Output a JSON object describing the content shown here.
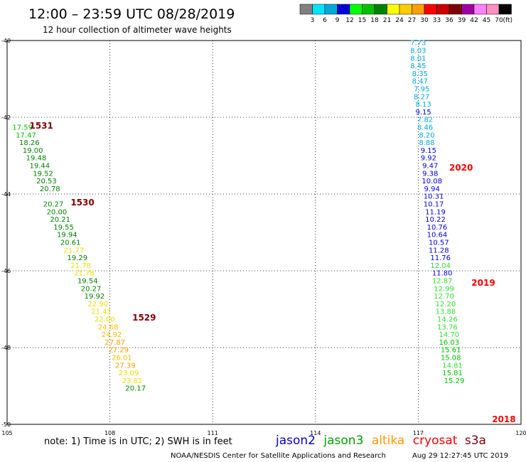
{
  "header": {
    "title": "12:00 – 23:59 UTC 08/28/2019",
    "subtitle": "12 hour collection of altimeter wave heights"
  },
  "legend_scale": {
    "colors": [
      "#808080",
      "#00e5ff",
      "#00a8d8",
      "#0000d8",
      "#00ff00",
      "#00c000",
      "#008000",
      "#ffff00",
      "#ffcc00",
      "#ffa000",
      "#ff0000",
      "#cc0000",
      "#800000",
      "#a000a0",
      "#ff80ff",
      "#ff90c0",
      "#000000"
    ],
    "labels": [
      "3",
      "6",
      "9",
      "12",
      "15",
      "18",
      "21",
      "24",
      "27",
      "30",
      "33",
      "36",
      "39",
      "42",
      "45",
      "70"
    ],
    "unit": "(ft)"
  },
  "footer": {
    "note": "note:  1) Time is in UTC;  2) SWH is in feet",
    "credit": "NOAA/NESDIS Center for Satellite Applications and Research",
    "timestamp": "Aug 29 12:27:45 UTC 2019",
    "satellites": [
      {
        "name": "jason2",
        "color": "#0000cc"
      },
      {
        "name": "jason3",
        "color": "#00a000"
      },
      {
        "name": "altika",
        "color": "#ff9900"
      },
      {
        "name": "cryosat",
        "color": "#ff0000"
      },
      {
        "name": "s3a",
        "color": "#800000"
      }
    ]
  },
  "chart_data": {
    "type": "scatter",
    "title": "12:00 – 23:59 UTC 08/28/2019",
    "xlim": [
      105,
      120
    ],
    "ylim": [
      -50,
      -40
    ],
    "x_ticks": [
      "105",
      "108",
      "111",
      "114",
      "117",
      "120"
    ],
    "y_ticks": [
      "-40",
      "-42",
      "-44",
      "-46",
      "-48",
      "-50"
    ],
    "grid": true,
    "series": [
      {
        "name": "s3a",
        "points": [
          {
            "x": 105.45,
            "y": -42.25,
            "v": "17.59"
          },
          {
            "x": 105.55,
            "y": -42.45,
            "v": "17.47"
          },
          {
            "x": 105.65,
            "y": -42.65,
            "v": "18.26"
          },
          {
            "x": 105.75,
            "y": -42.85,
            "v": "19.00"
          },
          {
            "x": 105.85,
            "y": -43.05,
            "v": "19.48"
          },
          {
            "x": 105.95,
            "y": -43.25,
            "v": "19.44"
          },
          {
            "x": 106.05,
            "y": -43.45,
            "v": "19.52"
          },
          {
            "x": 106.15,
            "y": -43.65,
            "v": "20.53"
          },
          {
            "x": 106.25,
            "y": -43.85,
            "v": "20.78"
          },
          {
            "x": 106.35,
            "y": -44.25,
            "v": "20.27"
          },
          {
            "x": 106.45,
            "y": -44.45,
            "v": "20.00"
          },
          {
            "x": 106.55,
            "y": -44.65,
            "v": "20.21"
          },
          {
            "x": 106.65,
            "y": -44.85,
            "v": "19.55"
          },
          {
            "x": 106.75,
            "y": -45.05,
            "v": "19.94"
          },
          {
            "x": 106.85,
            "y": -45.25,
            "v": "20.61"
          },
          {
            "x": 106.95,
            "y": -45.45,
            "v": "21.77"
          },
          {
            "x": 107.05,
            "y": -45.65,
            "v": "19.29"
          },
          {
            "x": 107.15,
            "y": -45.85,
            "v": "21.78"
          },
          {
            "x": 107.25,
            "y": -46.05,
            "v": "21.78"
          },
          {
            "x": 107.35,
            "y": -46.25,
            "v": "19.54"
          },
          {
            "x": 107.45,
            "y": -46.45,
            "v": "20.27"
          },
          {
            "x": 107.55,
            "y": -46.65,
            "v": "19.92"
          },
          {
            "x": 107.65,
            "y": -46.85,
            "v": "22.90"
          },
          {
            "x": 107.75,
            "y": -47.05,
            "v": "21.41"
          },
          {
            "x": 107.85,
            "y": -47.25,
            "v": "22.00"
          },
          {
            "x": 107.95,
            "y": -47.45,
            "v": "24.68"
          },
          {
            "x": 108.05,
            "y": -47.65,
            "v": "24.92"
          },
          {
            "x": 108.15,
            "y": -47.85,
            "v": "27.87"
          },
          {
            "x": 108.25,
            "y": -48.05,
            "v": "27.29"
          },
          {
            "x": 108.35,
            "y": -48.25,
            "v": "26.01"
          },
          {
            "x": 108.45,
            "y": -48.45,
            "v": "27.39"
          },
          {
            "x": 108.55,
            "y": -48.65,
            "v": "23.09"
          },
          {
            "x": 108.65,
            "y": -48.85,
            "v": "23.81"
          },
          {
            "x": 108.75,
            "y": -49.05,
            "v": "20.17"
          }
        ]
      },
      {
        "name": "cryosat",
        "points": [
          {
            "x": 117.0,
            "y": -40.05,
            "v": "7.73"
          },
          {
            "x": 117.0,
            "y": -40.25,
            "v": "8.03"
          },
          {
            "x": 117.0,
            "y": -40.45,
            "v": "8.01"
          },
          {
            "x": 117.0,
            "y": -40.65,
            "v": "8.45"
          },
          {
            "x": 117.05,
            "y": -40.85,
            "v": "8.35"
          },
          {
            "x": 117.05,
            "y": -41.05,
            "v": "8.47"
          },
          {
            "x": 117.1,
            "y": -41.25,
            "v": "7.95"
          },
          {
            "x": 117.1,
            "y": -41.45,
            "v": "8.27"
          },
          {
            "x": 117.15,
            "y": -41.65,
            "v": "8.13"
          },
          {
            "x": 117.15,
            "y": -41.85,
            "v": "9.15"
          },
          {
            "x": 117.2,
            "y": -42.05,
            "v": "7.82"
          },
          {
            "x": 117.2,
            "y": -42.25,
            "v": "8.46"
          },
          {
            "x": 117.25,
            "y": -42.45,
            "v": "8.20"
          },
          {
            "x": 117.25,
            "y": -42.65,
            "v": "8.88"
          },
          {
            "x": 117.3,
            "y": -42.85,
            "v": "9.15"
          },
          {
            "x": 117.3,
            "y": -43.05,
            "v": "9.92"
          },
          {
            "x": 117.35,
            "y": -43.25,
            "v": "9.47"
          },
          {
            "x": 117.35,
            "y": -43.45,
            "v": "9.38"
          },
          {
            "x": 117.4,
            "y": -43.65,
            "v": "10.08"
          },
          {
            "x": 117.4,
            "y": -43.85,
            "v": "9.94"
          },
          {
            "x": 117.45,
            "y": -44.05,
            "v": "10.31"
          },
          {
            "x": 117.45,
            "y": -44.25,
            "v": "10.17"
          },
          {
            "x": 117.5,
            "y": -44.45,
            "v": "11.19"
          },
          {
            "x": 117.5,
            "y": -44.65,
            "v": "10.22"
          },
          {
            "x": 117.55,
            "y": -44.85,
            "v": "10.76"
          },
          {
            "x": 117.55,
            "y": -45.05,
            "v": "10.64"
          },
          {
            "x": 117.6,
            "y": -45.25,
            "v": "10.57"
          },
          {
            "x": 117.6,
            "y": -45.45,
            "v": "11.28"
          },
          {
            "x": 117.65,
            "y": -45.65,
            "v": "11.76"
          },
          {
            "x": 117.65,
            "y": -45.85,
            "v": "12.04"
          },
          {
            "x": 117.7,
            "y": -46.05,
            "v": "11.80"
          },
          {
            "x": 117.7,
            "y": -46.25,
            "v": "12.87"
          },
          {
            "x": 117.75,
            "y": -46.45,
            "v": "12.99"
          },
          {
            "x": 117.75,
            "y": -46.65,
            "v": "12.70"
          },
          {
            "x": 117.8,
            "y": -46.85,
            "v": "12.20"
          },
          {
            "x": 117.8,
            "y": -47.05,
            "v": "13.88"
          },
          {
            "x": 117.85,
            "y": -47.25,
            "v": "14.26"
          },
          {
            "x": 117.85,
            "y": -47.45,
            "v": "13.76"
          },
          {
            "x": 117.9,
            "y": -47.65,
            "v": "14.70"
          },
          {
            "x": 117.9,
            "y": -47.85,
            "v": "16.03"
          },
          {
            "x": 117.95,
            "y": -48.05,
            "v": "15.61"
          },
          {
            "x": 117.95,
            "y": -48.25,
            "v": "15.08"
          },
          {
            "x": 118.0,
            "y": -48.45,
            "v": "14.81"
          },
          {
            "x": 118.0,
            "y": -48.65,
            "v": "15.81"
          },
          {
            "x": 118.05,
            "y": -48.85,
            "v": "15.29"
          }
        ]
      }
    ],
    "time_labels": [
      {
        "text": "1531",
        "x": 106.0,
        "y": -42.2,
        "color": "#800000"
      },
      {
        "text": "1530",
        "x": 107.2,
        "y": -44.2,
        "color": "#800000"
      },
      {
        "text": "1529",
        "x": 109.0,
        "y": -47.2,
        "color": "#800000"
      },
      {
        "text": "2020",
        "x": 118.25,
        "y": -43.3,
        "color": "#ff0000"
      },
      {
        "text": "2019",
        "x": 118.9,
        "y": -46.3,
        "color": "#ff0000"
      },
      {
        "text": "2018",
        "x": 119.5,
        "y": -49.85,
        "color": "#ff0000"
      }
    ]
  }
}
